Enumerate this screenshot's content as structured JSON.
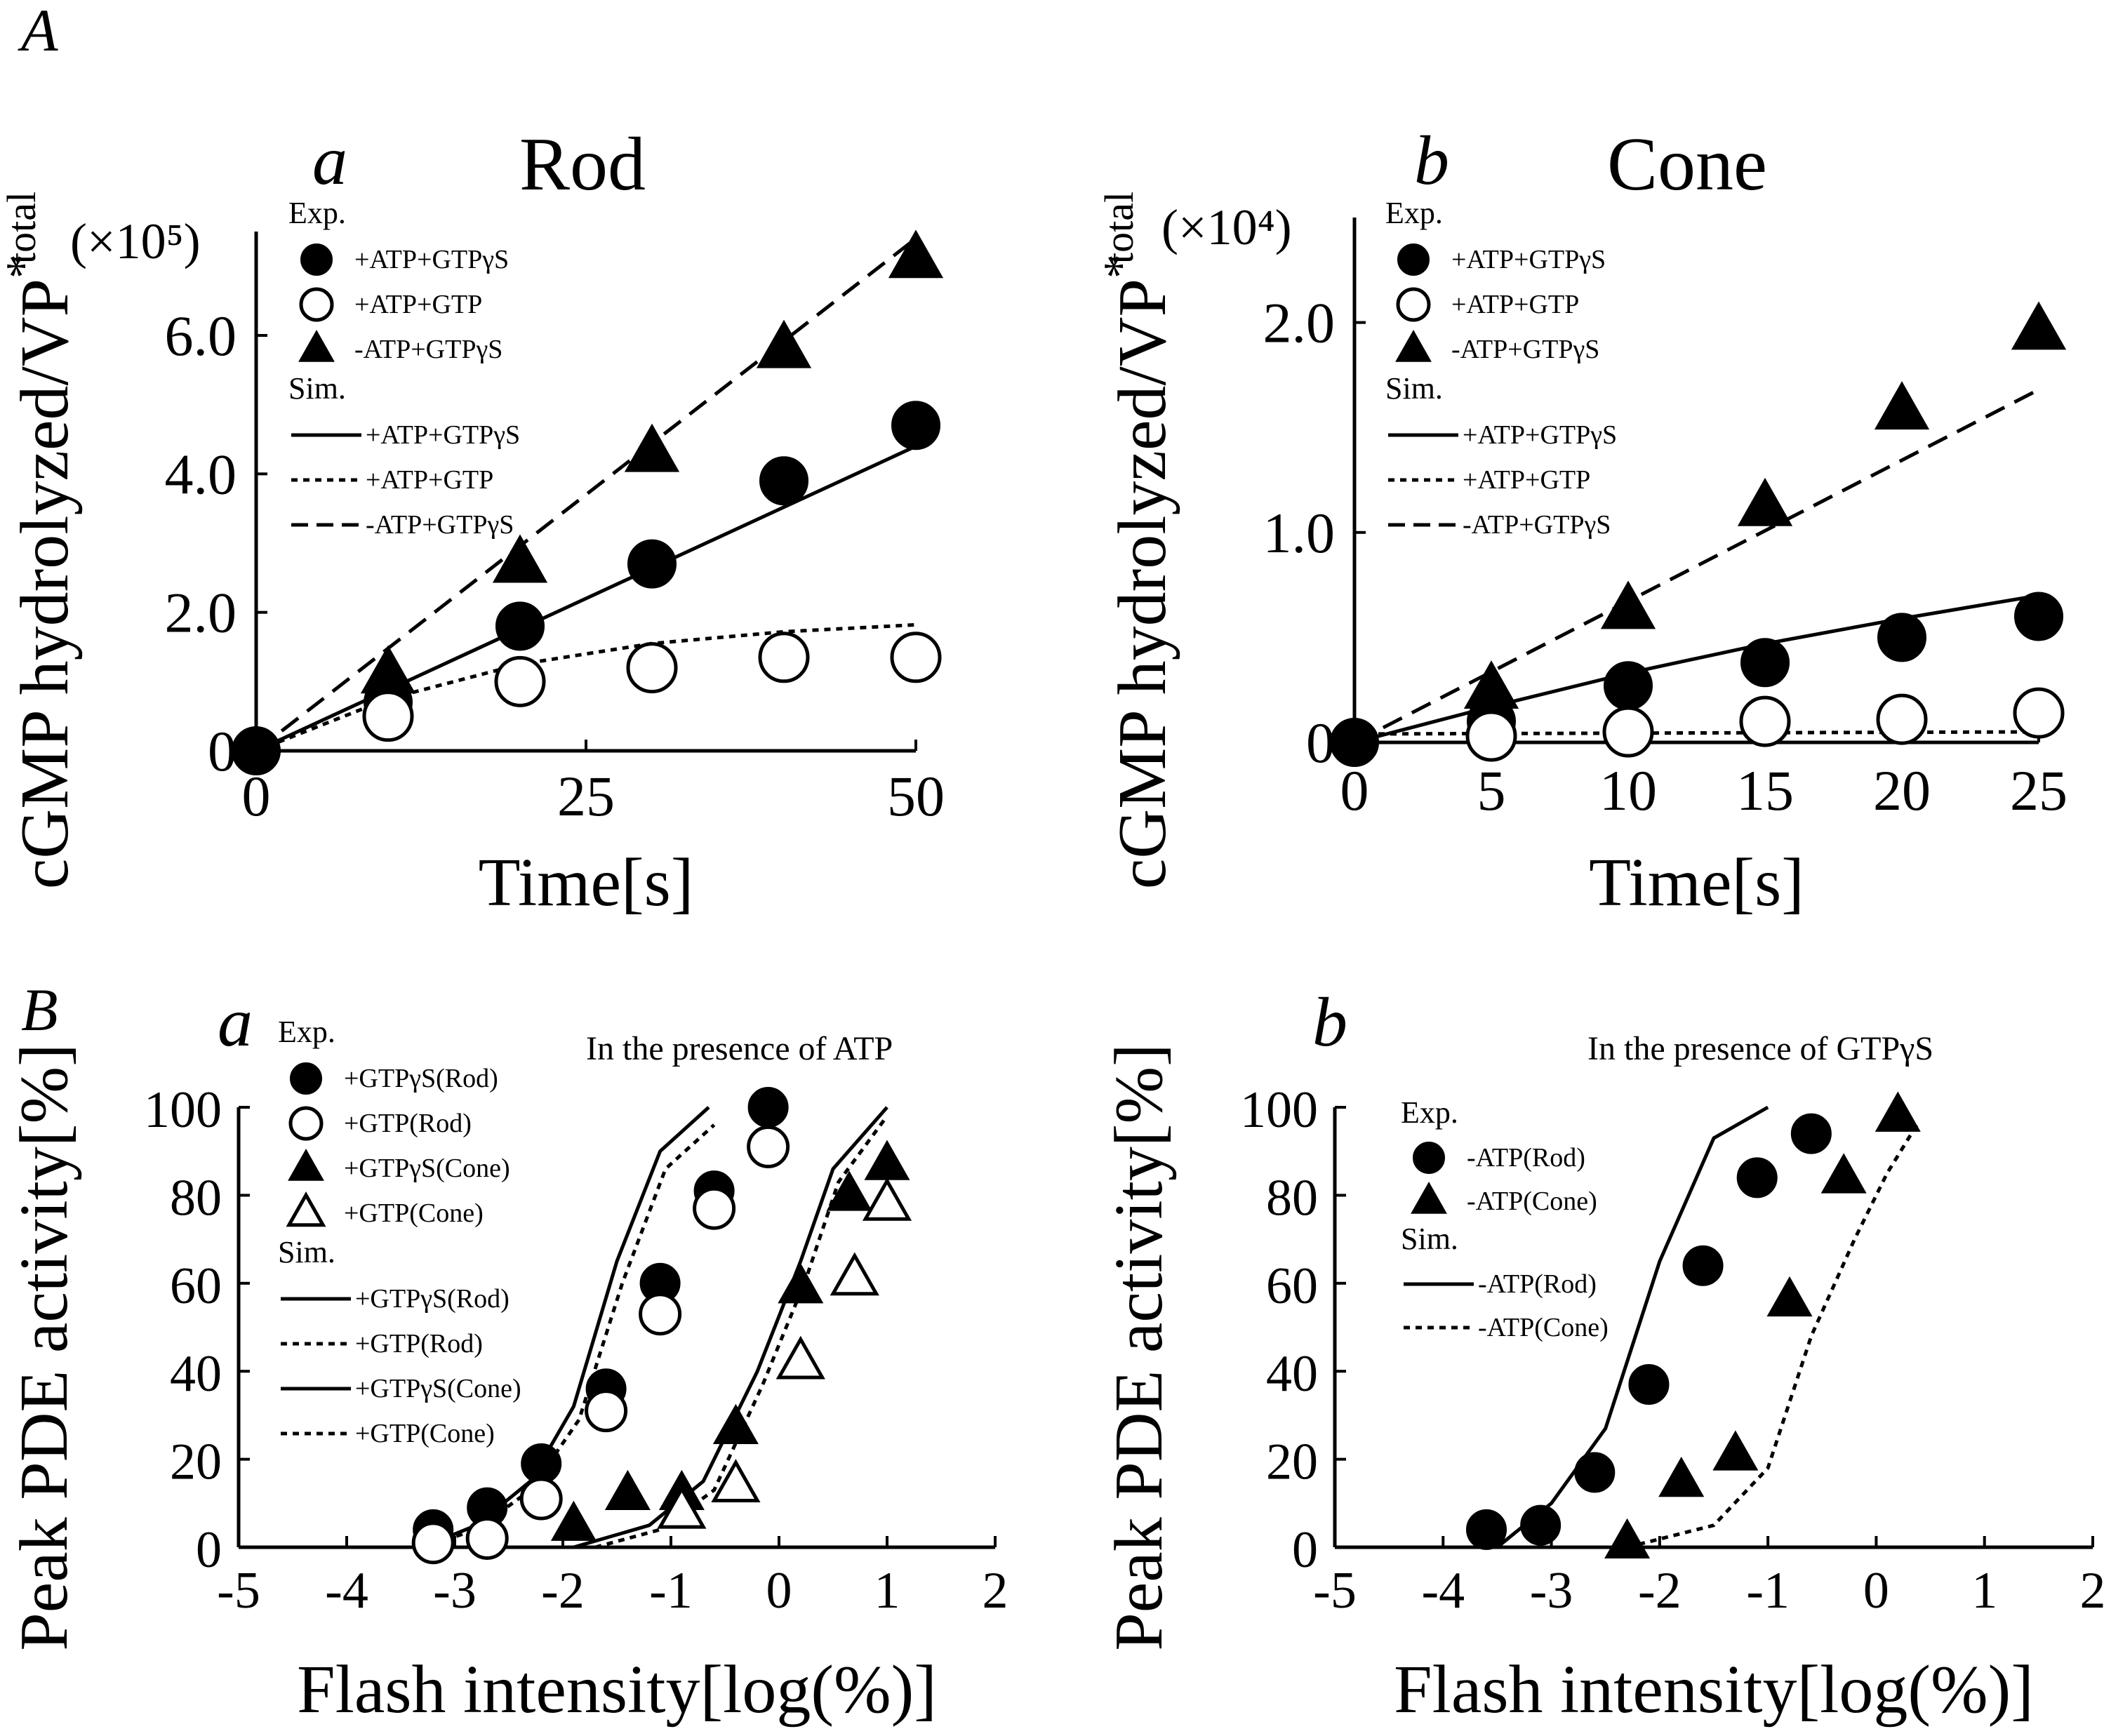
{
  "figure_labels": {
    "A": "A",
    "B": "B"
  },
  "chart_data": [
    {
      "id": "Aa",
      "type": "scatter",
      "panel": "a",
      "title": "Rod",
      "xlabel": "Time[s]",
      "ylabel": "cGMP hydrolyzed/VP*total",
      "ylabel_main": "cGMP hydrolyzed/VP",
      "ylabel_sup": "*",
      "ylabel_sub": "total",
      "scale_note": "(×10⁵)",
      "xlim": [
        0,
        50
      ],
      "ylim": [
        0,
        7.5
      ],
      "xticks": [
        0,
        25,
        50
      ],
      "xtick_labels": [
        "0",
        "25",
        "50"
      ],
      "yticks": [
        0,
        2,
        4,
        6
      ],
      "ytick_labels": [
        "0",
        "2.0",
        "4.0",
        "6.0"
      ],
      "legend_exp_label": "Exp.",
      "legend_sim_label": "Sim.",
      "exp_series": [
        {
          "name": "+ATP+GTPγS",
          "marker": "filled-circle",
          "x": [
            0,
            10,
            20,
            30,
            40,
            50
          ],
          "y": [
            0,
            0.7,
            1.8,
            2.7,
            3.9,
            4.7
          ]
        },
        {
          "name": "+ATP+GTP",
          "marker": "open-circle",
          "x": [
            10,
            20,
            30,
            40,
            50
          ],
          "y": [
            0.5,
            1.0,
            1.2,
            1.35,
            1.35
          ]
        },
        {
          "name": "-ATP+GTPγS",
          "marker": "filled-triangle",
          "x": [
            10,
            20,
            30,
            40,
            50
          ],
          "y": [
            1.1,
            2.7,
            4.3,
            5.8,
            7.1
          ]
        }
      ],
      "sim_series": [
        {
          "name": "+ATP+GTPγS",
          "style": "solid",
          "x": [
            0,
            50
          ],
          "y": [
            0,
            4.4
          ]
        },
        {
          "name": "+ATP+GTP",
          "style": "dotted",
          "x": [
            0,
            10,
            20,
            30,
            40,
            50
          ],
          "y": [
            0,
            0.75,
            1.25,
            1.55,
            1.72,
            1.82
          ]
        },
        {
          "name": "-ATP+GTPγS",
          "style": "dashed",
          "x": [
            0,
            50
          ],
          "y": [
            0,
            7.4
          ]
        }
      ]
    },
    {
      "id": "Ab",
      "type": "scatter",
      "panel": "b",
      "title": "Cone",
      "xlabel": "Time[s]",
      "ylabel": "cGMP hydrolyzed/VP*total",
      "ylabel_main": "cGMP hydrolyzed/VP",
      "ylabel_sup": "*",
      "ylabel_sub": "total",
      "scale_note": "(×10⁴)",
      "xlim": [
        0,
        25
      ],
      "ylim": [
        0,
        2.5
      ],
      "xticks": [
        0,
        5,
        10,
        15,
        20,
        25
      ],
      "xtick_labels": [
        "0",
        "5",
        "10",
        "15",
        "20",
        "25"
      ],
      "yticks": [
        0,
        1,
        2
      ],
      "ytick_labels": [
        "0",
        "1.0",
        "2.0"
      ],
      "legend_exp_label": "Exp.",
      "legend_sim_label": "Sim.",
      "exp_series": [
        {
          "name": "+ATP+GTPγS",
          "marker": "filled-circle",
          "x": [
            0,
            5,
            10,
            15,
            20,
            25
          ],
          "y": [
            0,
            0.1,
            0.27,
            0.38,
            0.5,
            0.6
          ]
        },
        {
          "name": "+ATP+GTP",
          "marker": "open-circle",
          "x": [
            5,
            10,
            15,
            20,
            25
          ],
          "y": [
            0.03,
            0.05,
            0.1,
            0.11,
            0.14
          ]
        },
        {
          "name": "-ATP+GTPγS",
          "marker": "filled-triangle",
          "x": [
            5,
            10,
            15,
            20,
            25
          ],
          "y": [
            0.25,
            0.63,
            1.12,
            1.58,
            1.96
          ]
        }
      ],
      "sim_series": [
        {
          "name": "+ATP+GTPγS",
          "style": "solid",
          "x": [
            0,
            5,
            10,
            15,
            20,
            25
          ],
          "y": [
            0,
            0.17,
            0.33,
            0.47,
            0.59,
            0.7
          ]
        },
        {
          "name": "+ATP+GTP",
          "style": "dotted",
          "x": [
            0,
            25
          ],
          "y": [
            0.04,
            0.05
          ]
        },
        {
          "name": "-ATP+GTPγS",
          "style": "dashed",
          "x": [
            0,
            25
          ],
          "y": [
            0,
            1.68
          ]
        }
      ]
    },
    {
      "id": "Ba",
      "type": "scatter",
      "panel": "a",
      "annotation": "In the presence of ATP",
      "xlabel": "Flash intensity[log(%)]",
      "ylabel": "Peak PDE activity[%]",
      "xlim": [
        -5,
        2
      ],
      "ylim": [
        0,
        100
      ],
      "xticks": [
        -5,
        -4,
        -3,
        -2,
        -1,
        0,
        1,
        2
      ],
      "xtick_labels": [
        "-5",
        "-4",
        "-3",
        "-2",
        "-1",
        "0",
        "1",
        "2"
      ],
      "yticks": [
        0,
        20,
        40,
        60,
        80,
        100
      ],
      "ytick_labels": [
        "0",
        "20",
        "40",
        "60",
        "80",
        "100"
      ],
      "legend_exp_label": "Exp.",
      "legend_sim_label": "Sim.",
      "exp_series": [
        {
          "name": "+GTPγS(Rod)",
          "marker": "filled-circle",
          "x": [
            -3.2,
            -2.7,
            -2.2,
            -1.6,
            -1.1,
            -0.6,
            -0.1
          ],
          "y": [
            4,
            9,
            19,
            36,
            60,
            81,
            100
          ]
        },
        {
          "name": "+GTP(Rod)",
          "marker": "open-circle",
          "x": [
            -3.2,
            -2.7,
            -2.2,
            -1.6,
            -1.1,
            -0.6,
            -0.1
          ],
          "y": [
            1,
            2,
            11,
            31,
            53,
            77,
            91
          ]
        },
        {
          "name": "+GTPγS(Cone)",
          "marker": "filled-triangle",
          "x": [
            -1.9,
            -1.4,
            -0.9,
            -0.4,
            0.2,
            0.65,
            1.0
          ],
          "y": [
            5,
            12,
            12,
            27,
            59,
            80,
            87
          ]
        },
        {
          "name": "+GTP(Cone)",
          "marker": "open-triangle",
          "x": [
            -0.9,
            -0.4,
            0.2,
            0.7,
            1.0
          ],
          "y": [
            8,
            14,
            42,
            61,
            78
          ]
        }
      ],
      "sim_series": [
        {
          "name": "+GTPγS(Rod)",
          "style": "solid",
          "x": [
            -3.3,
            -2.8,
            -2.3,
            -1.9,
            -1.5,
            -1.1,
            -0.65
          ],
          "y": [
            0,
            5,
            15,
            32,
            65,
            90,
            100
          ]
        },
        {
          "name": "+GTP(Rod)",
          "style": "dotted",
          "x": [
            -3.3,
            -2.8,
            -2.3,
            -1.85,
            -1.45,
            -1.05,
            -0.6
          ],
          "y": [
            0,
            4,
            13,
            29,
            60,
            86,
            96
          ]
        },
        {
          "name": "+GTPγS(Cone)",
          "style": "solid",
          "x": [
            -1.9,
            -1.2,
            -0.7,
            -0.2,
            0.2,
            0.5,
            1.0
          ],
          "y": [
            0,
            5,
            15,
            40,
            65,
            86,
            100
          ]
        },
        {
          "name": "+GTP(Cone)",
          "style": "dotted",
          "x": [
            -1.7,
            -1.1,
            -0.6,
            -0.15,
            0.25,
            0.55,
            1.0
          ],
          "y": [
            0,
            4,
            13,
            37,
            61,
            83,
            98
          ]
        }
      ]
    },
    {
      "id": "Bb",
      "type": "scatter",
      "panel": "b",
      "annotation": "In the presence of GTPγS",
      "xlabel": "Flash intensity[log(%)]",
      "ylabel": "Peak PDE activity[%]",
      "xlim": [
        -5,
        2
      ],
      "ylim": [
        0,
        100
      ],
      "xticks": [
        -5,
        -4,
        -3,
        -2,
        -1,
        0,
        1,
        2
      ],
      "xtick_labels": [
        "-5",
        "-4",
        "-3",
        "-2",
        "-1",
        "0",
        "1",
        "2"
      ],
      "yticks": [
        0,
        20,
        40,
        60,
        80,
        100
      ],
      "ytick_labels": [
        "0",
        "20",
        "40",
        "60",
        "80",
        "100"
      ],
      "legend_exp_label": "Exp.",
      "legend_sim_label": "Sim.",
      "exp_series": [
        {
          "name": "-ATP(Rod)",
          "marker": "filled-circle",
          "x": [
            -3.6,
            -3.1,
            -2.6,
            -2.1,
            -1.6,
            -1.1,
            -0.6
          ],
          "y": [
            4,
            5,
            17,
            37,
            64,
            84,
            94
          ]
        },
        {
          "name": "-ATP(Cone)",
          "marker": "filled-triangle",
          "x": [
            -2.3,
            -1.8,
            -1.3,
            -0.8,
            -0.3,
            0.2
          ],
          "y": [
            1,
            15,
            21,
            56,
            84,
            98
          ]
        }
      ],
      "sim_series": [
        {
          "name": "-ATP(Rod)",
          "style": "solid",
          "x": [
            -3.5,
            -3.0,
            -2.5,
            -2.0,
            -1.5,
            -1.0
          ],
          "y": [
            0,
            10,
            27,
            65,
            93,
            100
          ]
        },
        {
          "name": "-ATP(Cone)",
          "style": "dotted",
          "x": [
            -2.3,
            -1.5,
            -1.0,
            -0.6,
            -0.2,
            0.1,
            0.4
          ],
          "y": [
            0,
            5,
            18,
            48,
            70,
            85,
            97
          ]
        }
      ]
    }
  ]
}
